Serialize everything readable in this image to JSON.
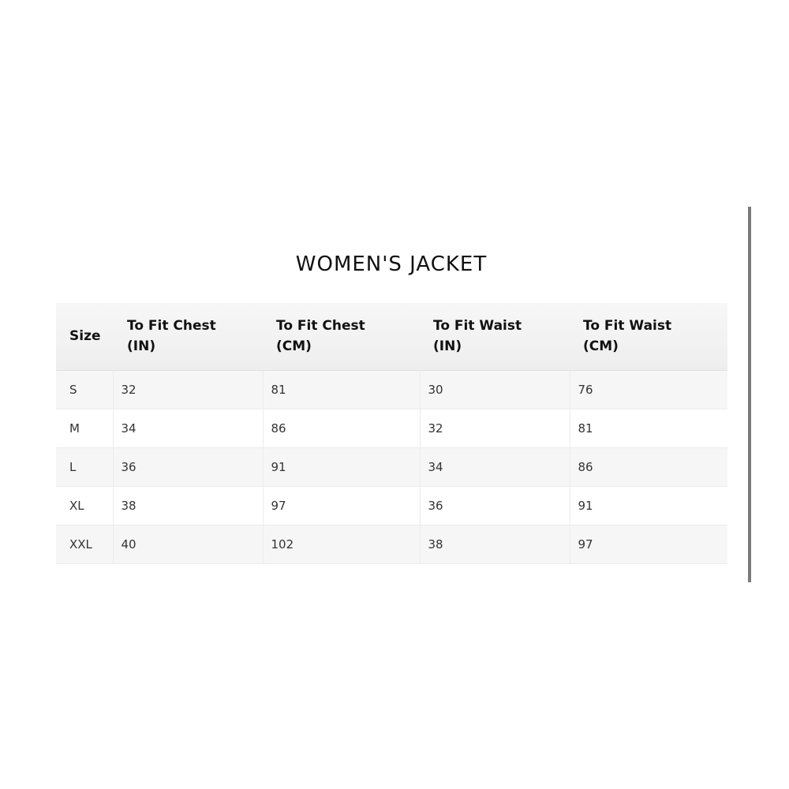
{
  "title": "WOMEN'S JACKET",
  "table": {
    "headers": [
      [
        "Size"
      ],
      [
        "To Fit Chest",
        "(IN)"
      ],
      [
        "To Fit Chest",
        "(CM)"
      ],
      [
        "To Fit Waist",
        "(IN)"
      ],
      [
        "To Fit Waist",
        "(CM)"
      ]
    ],
    "rows": [
      [
        "S",
        "32",
        "81",
        "30",
        "76"
      ],
      [
        "M",
        "34",
        "86",
        "32",
        "81"
      ],
      [
        "L",
        "36",
        "91",
        "34",
        "86"
      ],
      [
        "XL",
        "38",
        "97",
        "36",
        "91"
      ],
      [
        "XXL",
        "40",
        "102",
        "38",
        "97"
      ]
    ]
  }
}
